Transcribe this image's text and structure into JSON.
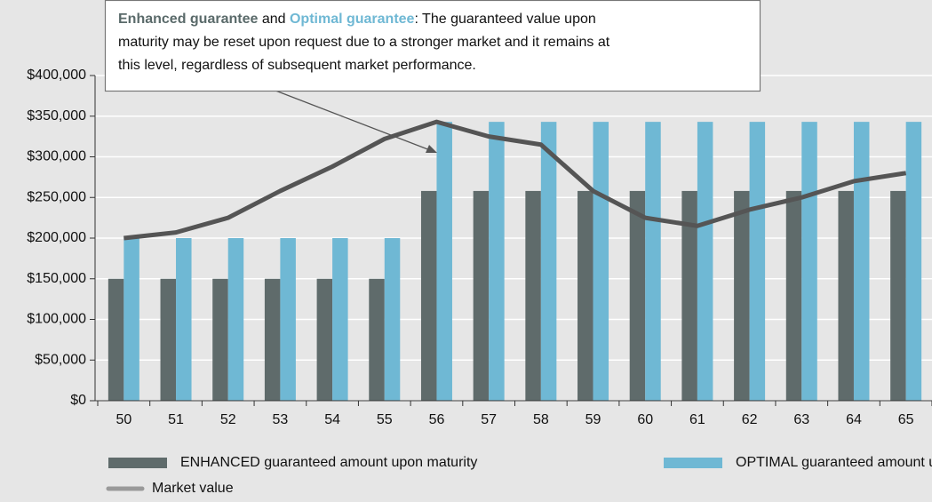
{
  "chart_data": {
    "type": "bar",
    "annotation": [
      [
        "Enhanced guarantee",
        " and ",
        "Optimal guarantee",
        ": The guaranteed value upon"
      ],
      [
        "maturity may be reset upon request due to a stronger market and it remains at"
      ],
      [
        "this level, regardless of subsequent market performance."
      ]
    ],
    "categories": [
      "50",
      "51",
      "52",
      "53",
      "54",
      "55",
      "56",
      "57",
      "58",
      "59",
      "60",
      "61",
      "62",
      "63",
      "64",
      "65"
    ],
    "series": [
      {
        "name": "ENHANCED guaranteed amount upon maturity",
        "type": "bar",
        "color": "#5f6b6b",
        "values": [
          150000,
          150000,
          150000,
          150000,
          150000,
          150000,
          258000,
          258000,
          258000,
          258000,
          258000,
          258000,
          258000,
          258000,
          258000,
          258000
        ]
      },
      {
        "name": "OPTIMAL guaranteed amount upon maturity",
        "type": "bar",
        "color": "#6fb8d4",
        "values": [
          200000,
          200000,
          200000,
          200000,
          200000,
          200000,
          343000,
          343000,
          343000,
          343000,
          343000,
          343000,
          343000,
          343000,
          343000,
          343000
        ]
      },
      {
        "name": "Market value",
        "type": "line",
        "color": "#555555",
        "values": [
          200000,
          207000,
          225000,
          258000,
          288000,
          322000,
          343000,
          325000,
          315000,
          258000,
          225000,
          215000,
          235000,
          250000,
          270000,
          280000
        ]
      }
    ],
    "ylim": [
      0,
      400000
    ],
    "yticks": [
      {
        "value": 0,
        "label": "$0"
      },
      {
        "value": 50000,
        "label": "$50,000"
      },
      {
        "value": 100000,
        "label": "$100,000"
      },
      {
        "value": 150000,
        "label": "$150,000"
      },
      {
        "value": 200000,
        "label": "$200,000"
      },
      {
        "value": 250000,
        "label": "$250,000"
      },
      {
        "value": 300000,
        "label": "$300,000"
      },
      {
        "value": 350000,
        "label": "$350,000"
      },
      {
        "value": 400000,
        "label": "$400,000"
      }
    ],
    "grid": true
  }
}
